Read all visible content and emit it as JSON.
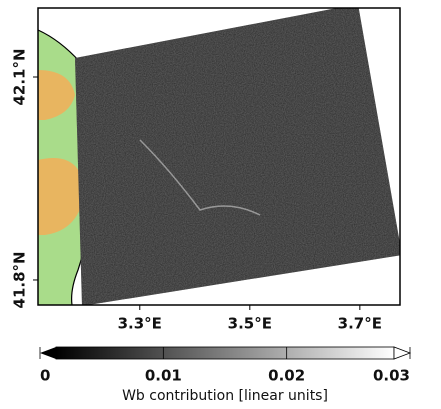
{
  "map": {
    "xlim": [
      3.115,
      3.773
    ],
    "ylim": [
      41.763,
      42.202
    ],
    "xticks": [
      {
        "value": 3.3,
        "label": "3.3°E"
      },
      {
        "value": 3.5,
        "label": "3.5°E"
      },
      {
        "value": 3.7,
        "label": "3.7°E"
      }
    ],
    "yticks": [
      {
        "value": 41.8,
        "label": "41.8°N"
      },
      {
        "value": 42.1,
        "label": "42.1°N"
      }
    ]
  },
  "colorbar": {
    "lim": [
      0,
      0.03
    ],
    "ticks": [
      0,
      0.01,
      0.02,
      0.03
    ],
    "label": "Wb contribution [linear units]"
  }
}
